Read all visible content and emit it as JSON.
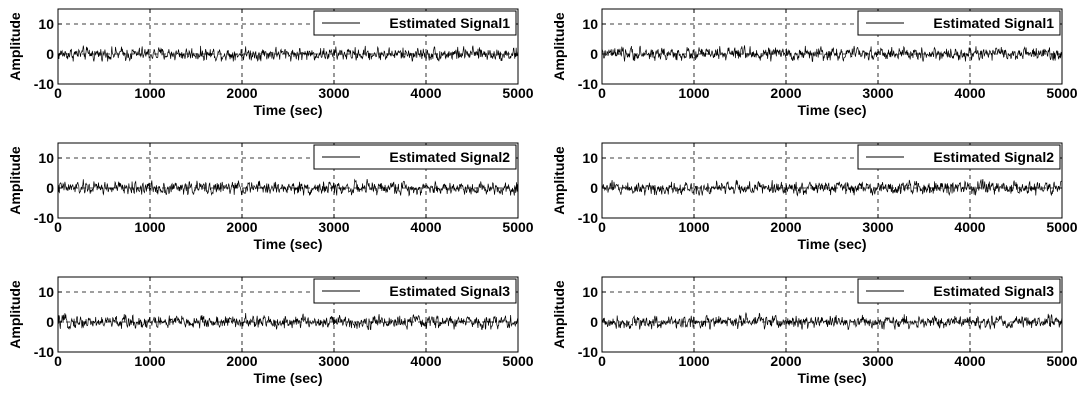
{
  "chart_data": [
    {
      "type": "line",
      "series": [
        {
          "name": "Estimated Signal1",
          "x_range": [
            0,
            5000
          ],
          "mean": 0,
          "amplitude_range": [
            -2.5,
            3
          ]
        }
      ],
      "xlabel": "Time (sec)",
      "ylabel": "Amplitude",
      "xlim": [
        0,
        5000
      ],
      "ylim": [
        -10,
        15
      ],
      "xticks": [
        "0",
        "1000",
        "2000",
        "3000",
        "4000",
        "5000"
      ],
      "yticks": [
        "-10",
        "0",
        "10"
      ],
      "grid": true,
      "legend": "top-right"
    },
    {
      "type": "line",
      "series": [
        {
          "name": "Estimated Signal2",
          "x_range": [
            0,
            5000
          ],
          "mean": 0,
          "amplitude_range": [
            -2.5,
            3
          ]
        }
      ],
      "xlabel": "Time (sec)",
      "ylabel": "Amplitude",
      "xlim": [
        0,
        5000
      ],
      "ylim": [
        -10,
        15
      ],
      "xticks": [
        "0",
        "1000",
        "2000",
        "3000",
        "4000",
        "5000"
      ],
      "yticks": [
        "-10",
        "0",
        "10"
      ],
      "grid": true,
      "legend": "top-right"
    },
    {
      "type": "line",
      "series": [
        {
          "name": "Estimated Signal3",
          "x_range": [
            0,
            5000
          ],
          "mean": 0,
          "amplitude_range": [
            -2.5,
            3
          ]
        }
      ],
      "xlabel": "Time (sec)",
      "ylabel": "Amplitude",
      "xlim": [
        0,
        5000
      ],
      "ylim": [
        -10,
        15
      ],
      "xticks": [
        "0",
        "1000",
        "2000",
        "3000",
        "4000",
        "5000"
      ],
      "yticks": [
        "-10",
        "0",
        "10"
      ],
      "grid": true,
      "legend": "top-right"
    },
    {
      "type": "line",
      "series": [
        {
          "name": "Estimated Signal1",
          "x_range": [
            0,
            5000
          ],
          "mean": 0,
          "amplitude_range": [
            -2.5,
            3
          ]
        }
      ],
      "xlabel": "Time (sec)",
      "ylabel": "Amplitude",
      "xlim": [
        0,
        5000
      ],
      "ylim": [
        -10,
        15
      ],
      "xticks": [
        "0",
        "1000",
        "2000",
        "3000",
        "4000",
        "5000"
      ],
      "yticks": [
        "-10",
        "0",
        "10"
      ],
      "grid": true,
      "legend": "top-right"
    },
    {
      "type": "line",
      "series": [
        {
          "name": "Estimated Signal2",
          "x_range": [
            0,
            5000
          ],
          "mean": 0,
          "amplitude_range": [
            -2.5,
            3
          ]
        }
      ],
      "xlabel": "Time (sec)",
      "ylabel": "Amplitude",
      "xlim": [
        0,
        5000
      ],
      "ylim": [
        -10,
        15
      ],
      "xticks": [
        "0",
        "1000",
        "2000",
        "3000",
        "4000",
        "5000"
      ],
      "yticks": [
        "-10",
        "0",
        "10"
      ],
      "grid": true,
      "legend": "top-right"
    },
    {
      "type": "line",
      "series": [
        {
          "name": "Estimated Signal3",
          "x_range": [
            0,
            5000
          ],
          "mean": 0,
          "amplitude_range": [
            -2.5,
            3
          ]
        }
      ],
      "xlabel": "Time (sec)",
      "ylabel": "Amplitude",
      "xlim": [
        0,
        5000
      ],
      "ylim": [
        -10,
        15
      ],
      "xticks": [
        "0",
        "1000",
        "2000",
        "3000",
        "4000",
        "5000"
      ],
      "yticks": [
        "-10",
        "0",
        "10"
      ],
      "grid": true,
      "legend": "top-right"
    }
  ],
  "colors": {
    "line": "#000000",
    "grid": "#000000",
    "background": "#ffffff"
  }
}
